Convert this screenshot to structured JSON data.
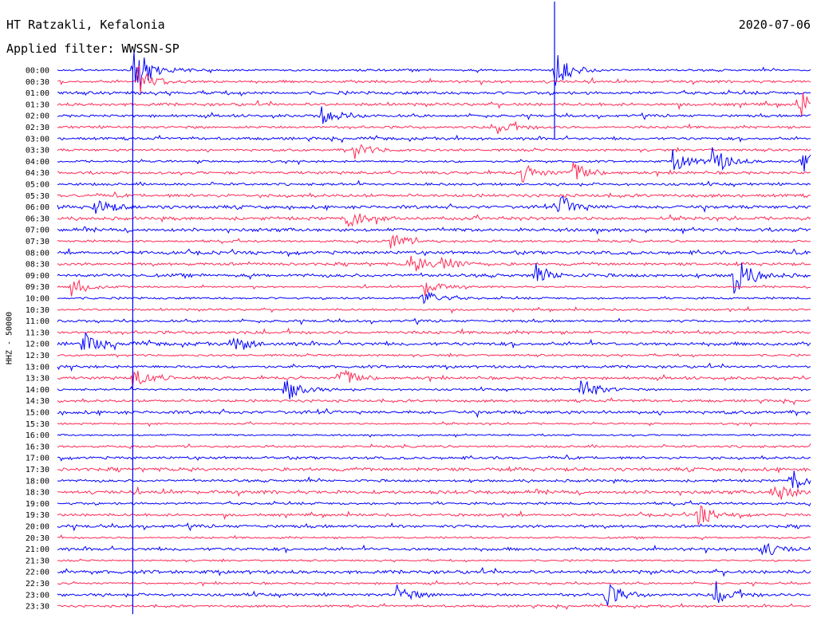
{
  "header": {
    "station": "HT Ratzakli, Kefalonia",
    "date": "2020-07-06",
    "filter": "Applied filter: WWSSN-SP"
  },
  "chart_data": {
    "type": "line",
    "title": "HT Ratzakli, Kefalonia",
    "ylabel": "HHZ - 50000",
    "row_labels": [
      "00:00",
      "00:30",
      "01:00",
      "01:30",
      "02:00",
      "02:30",
      "03:00",
      "03:30",
      "04:00",
      "04:30",
      "05:00",
      "05:30",
      "06:00",
      "06:30",
      "07:00",
      "07:30",
      "08:00",
      "08:30",
      "09:00",
      "09:30",
      "10:00",
      "10:30",
      "11:00",
      "11:30",
      "12:00",
      "12:30",
      "13:00",
      "13:30",
      "14:00",
      "14:30",
      "15:00",
      "15:30",
      "16:00",
      "16:30",
      "17:00",
      "17:30",
      "18:00",
      "18:30",
      "19:00",
      "19:30",
      "20:00",
      "20:30",
      "21:00",
      "21:30",
      "22:00",
      "22:30",
      "23:00",
      "23:30"
    ],
    "trace_colors": [
      "#0000ff",
      "#ff2a55"
    ],
    "events": [
      {
        "row": 0,
        "minute": 3.0,
        "amp": 3.2
      },
      {
        "row": 0,
        "minute": 19.8,
        "amp": 2.0
      },
      {
        "row": 1,
        "minute": 3.2,
        "amp": 1.5
      },
      {
        "row": 3,
        "minute": 29.5,
        "amp": 1.6
      },
      {
        "row": 4,
        "minute": 10.5,
        "amp": 1.0
      },
      {
        "row": 5,
        "minute": 17.5,
        "amp": 1.0
      },
      {
        "row": 7,
        "minute": 11.8,
        "amp": 0.9
      },
      {
        "row": 8,
        "minute": 26.0,
        "amp": 1.7
      },
      {
        "row": 8,
        "minute": 24.5,
        "amp": 1.2
      },
      {
        "row": 8,
        "minute": 29.6,
        "amp": 1.3
      },
      {
        "row": 9,
        "minute": 20.5,
        "amp": 1.2
      },
      {
        "row": 9,
        "minute": 18.5,
        "amp": 1.0
      },
      {
        "row": 12,
        "minute": 1.5,
        "amp": 1.0
      },
      {
        "row": 12,
        "minute": 20.0,
        "amp": 1.3
      },
      {
        "row": 13,
        "minute": 11.5,
        "amp": 1.4
      },
      {
        "row": 15,
        "minute": 13.2,
        "amp": 1.0
      },
      {
        "row": 17,
        "minute": 14.0,
        "amp": 1.2
      },
      {
        "row": 17,
        "minute": 15.2,
        "amp": 1.0
      },
      {
        "row": 18,
        "minute": 26.9,
        "amp": 2.4
      },
      {
        "row": 18,
        "minute": 19.0,
        "amp": 1.0
      },
      {
        "row": 19,
        "minute": 0.5,
        "amp": 1.2
      },
      {
        "row": 19,
        "minute": 14.5,
        "amp": 1.1
      },
      {
        "row": 20,
        "minute": 14.5,
        "amp": 1.1
      },
      {
        "row": 24,
        "minute": 1.0,
        "amp": 1.2
      },
      {
        "row": 24,
        "minute": 7.0,
        "amp": 1.0
      },
      {
        "row": 27,
        "minute": 3.0,
        "amp": 1.2
      },
      {
        "row": 27,
        "minute": 11.2,
        "amp": 1.3
      },
      {
        "row": 28,
        "minute": 9.0,
        "amp": 1.5
      },
      {
        "row": 28,
        "minute": 20.8,
        "amp": 1.4
      },
      {
        "row": 36,
        "minute": 29.2,
        "amp": 1.3
      },
      {
        "row": 37,
        "minute": 28.5,
        "amp": 1.2
      },
      {
        "row": 39,
        "minute": 25.5,
        "amp": 1.2
      },
      {
        "row": 42,
        "minute": 28.0,
        "amp": 1.0
      },
      {
        "row": 46,
        "minute": 13.5,
        "amp": 1.0
      },
      {
        "row": 46,
        "minute": 21.8,
        "amp": 1.4
      },
      {
        "row": 46,
        "minute": 26.2,
        "amp": 1.4
      }
    ]
  }
}
